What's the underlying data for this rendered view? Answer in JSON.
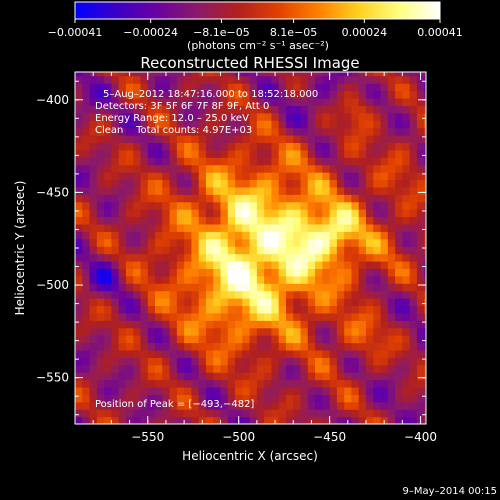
{
  "chart_data": {
    "type": "heatmap",
    "title": "Reconstructed RHESSI Image",
    "xlabel": "Heliocentric X (arcsec)",
    "ylabel": "Heliocentric Y (arcsec)",
    "xlim": [
      -590,
      -397
    ],
    "ylim": [
      -575,
      -385
    ],
    "x_ticks": [
      {
        "value": -550,
        "label": "−550"
      },
      {
        "value": -500,
        "label": "−500"
      },
      {
        "value": -450,
        "label": "−450"
      },
      {
        "value": -400,
        "label": "−400"
      }
    ],
    "y_ticks": [
      {
        "value": -400,
        "label": "−400"
      },
      {
        "value": -450,
        "label": "−450"
      },
      {
        "value": -500,
        "label": "−500"
      },
      {
        "value": -550,
        "label": "−550"
      }
    ],
    "peak": {
      "x": -493,
      "y": -482
    },
    "colorbar": {
      "range": [
        -0.00041,
        0.00041
      ],
      "ticks": [
        {
          "value": -0.00041,
          "label": "−0.00041"
        },
        {
          "value": -0.00024,
          "label": "−0.00024"
        },
        {
          "value": -8.1e-05,
          "label": "−8.1e−05"
        },
        {
          "value": 8.1e-05,
          "label": "8.1e−05"
        },
        {
          "value": 0.00024,
          "label": "0.00024"
        },
        {
          "value": 0.00041,
          "label": "0.00041"
        }
      ],
      "unit_label": "(photons cm⁻² s⁻¹ asec⁻²)",
      "colors": [
        "#0000ff",
        "#3a00c8",
        "#6a00a0",
        "#8a1a6a",
        "#b02020",
        "#e04000",
        "#ff8000",
        "#ffd020",
        "#ffff80",
        "#ffffff"
      ]
    }
  },
  "annotations": {
    "time_range": "5–Aug–2012 18:47:16.000 to 18:52:18.000",
    "detectors": "Detectors: 3F 5F 6F 7F 8F 9F, Att 0",
    "energy": "Energy Range: 12.0 – 25.0 keV",
    "clean": "Clean    Total counts: 4.97E+03",
    "peak_text": "Position of Peak = [−493,−482]",
    "timestamp": "9–May–2014 00:15"
  }
}
